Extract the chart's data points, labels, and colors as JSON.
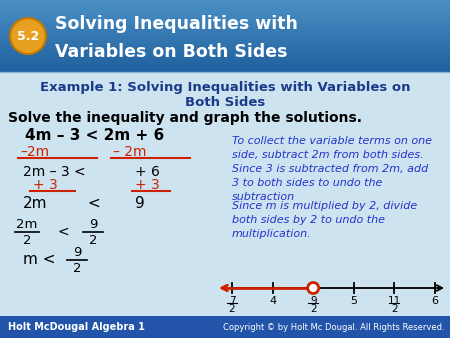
{
  "bg_color": "#cde4f0",
  "header_bg_top": "#4a90c4",
  "header_bg_bot": "#1f5f9e",
  "header_num": "5.2",
  "header_num_bg": "#e8a020",
  "header_line1": "Solving Inequalities with",
  "header_line2": "Variables on Both Sides",
  "example_line1": "Example 1: Solving Inequalities with Variables on",
  "example_line2": "Both Sides",
  "example_color": "#1a3a8a",
  "solve_text": "Solve the inequality and graph the solutions.",
  "step1": "4m – 3 < 2m + 6",
  "step2a": "–2m",
  "step2b": "– 2m",
  "red_color": "#cc2200",
  "step3a": "2m – 3 <",
  "step3b": "+ 6",
  "step4a": "+ 3",
  "step4b": "+ 3",
  "step5a": "2m",
  "step5b": "<",
  "step5c": "9",
  "note1": "To collect the variable terms on one\nside, subtract 2m from both sides.",
  "note2": "Since 3 is subtracted from 2m, add\n3 to both sides to undo the\nsubtraction",
  "note3": "Since m is multiplied by 2, divide\nboth sides by 2 to undo the\nmultiplication.",
  "note_color": "#2233cc",
  "footer_bg": "#2255aa",
  "footer_left": "Holt McDougal Algebra 1",
  "footer_right": "Copyright © by Holt Mc Dougal. All Rights Reserved.",
  "footer_color": "#ffffff",
  "nl_ticks": [
    3.5,
    4.0,
    4.5,
    5.0,
    5.5,
    6.0
  ],
  "nl_labels": [
    "7\n2",
    "4",
    "9\n2",
    "5",
    "11\n2",
    "6"
  ],
  "nl_open_at": 4.5,
  "nl_color": "#cc2200"
}
